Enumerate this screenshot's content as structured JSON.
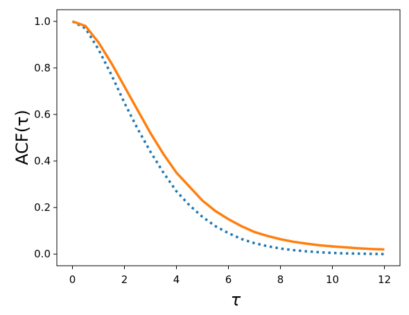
{
  "chart_data": {
    "type": "line",
    "xlabel": "τ",
    "ylabel": "ACF(τ)",
    "x": [
      0,
      0.5,
      1,
      1.5,
      2,
      2.5,
      3,
      3.5,
      4,
      4.5,
      5,
      5.5,
      6,
      6.5,
      7,
      7.5,
      8,
      8.5,
      9,
      9.5,
      10,
      10.5,
      11,
      11.5,
      12
    ],
    "series": [
      {
        "color": "#1f77b4",
        "dash": "dotted",
        "values": [
          1.0,
          0.97,
          0.88,
          0.77,
          0.65,
          0.54,
          0.44,
          0.35,
          0.27,
          0.21,
          0.16,
          0.12,
          0.09,
          0.065,
          0.047,
          0.034,
          0.024,
          0.017,
          0.012,
          0.008,
          0.005,
          0.003,
          0.002,
          0.001,
          0.0
        ]
      },
      {
        "color": "#ff7f0e",
        "dash": "solid",
        "values": [
          1.0,
          0.98,
          0.91,
          0.82,
          0.72,
          0.62,
          0.52,
          0.43,
          0.35,
          0.29,
          0.23,
          0.185,
          0.15,
          0.12,
          0.095,
          0.078,
          0.064,
          0.053,
          0.045,
          0.038,
          0.033,
          0.029,
          0.025,
          0.022,
          0.02
        ]
      }
    ],
    "xlim": [
      -0.6,
      12.6
    ],
    "xticks": [
      0,
      2,
      4,
      6,
      8,
      10,
      12
    ],
    "ylim": [
      -0.05,
      1.05
    ],
    "yticks": [
      {
        "value": 0,
        "label": "0.0"
      },
      0.2,
      0.4,
      0.6,
      0.8,
      {
        "value": 1,
        "label": "1.0"
      }
    ],
    "grid": false
  }
}
